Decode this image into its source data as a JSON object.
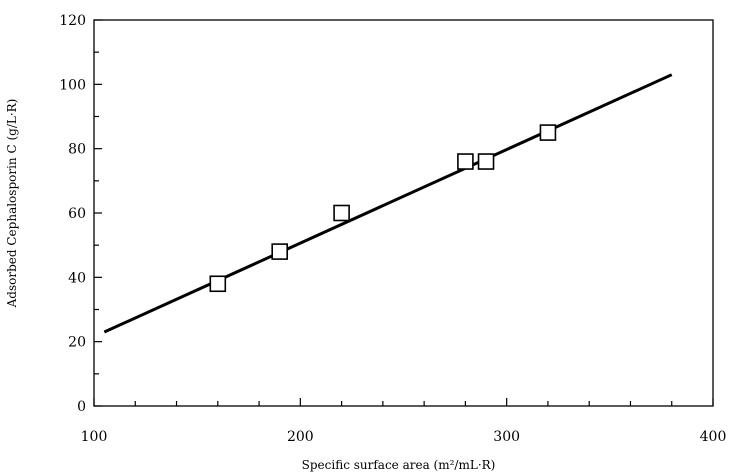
{
  "chart_data": {
    "type": "scatter",
    "title": "",
    "xlabel": "Specific surface area (m²/mL·R)",
    "ylabel": "Adsorbed Cephalosporin C (g/L·R)",
    "xlim": [
      100,
      400
    ],
    "ylim": [
      0,
      120
    ],
    "x_ticks": [
      100,
      200,
      300,
      400
    ],
    "y_ticks": [
      0,
      20,
      40,
      60,
      80,
      100,
      120
    ],
    "x_minor_step": 20,
    "y_minor_step": 10,
    "grid": false,
    "legend": "none",
    "colors": {
      "axis": "#000000",
      "marker_stroke": "#000000",
      "marker_fill": "#ffffff",
      "fit_line": "#000000"
    },
    "series": [
      {
        "points": [
          {
            "x": 160,
            "y": 38
          },
          {
            "x": 190,
            "y": 48
          },
          {
            "x": 220,
            "y": 60
          },
          {
            "x": 280,
            "y": 76
          },
          {
            "x": 290,
            "y": 76
          },
          {
            "x": 320,
            "y": 85
          }
        ],
        "marker": "square-open"
      }
    ],
    "fit_line": {
      "type": "linear",
      "x": [
        105,
        380
      ],
      "y": [
        23,
        103
      ]
    }
  }
}
